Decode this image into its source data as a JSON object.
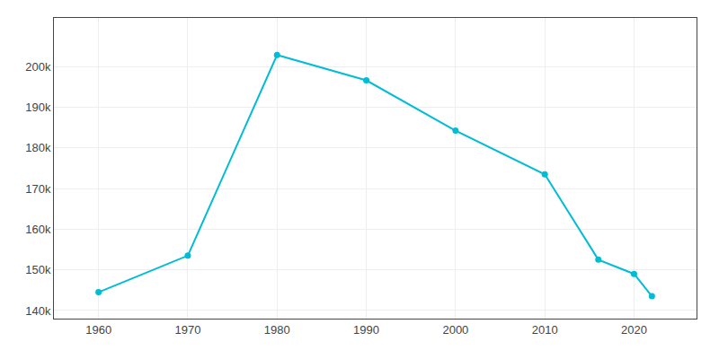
{
  "chart_data": {
    "type": "line",
    "x": [
      1960,
      1970,
      1980,
      1990,
      2000,
      2010,
      2016,
      2020,
      2022
    ],
    "values": [
      144500,
      153500,
      202895,
      196637,
      184256,
      173514,
      152500,
      149000,
      143500
    ],
    "color": "#00BCD4",
    "marker": "circle",
    "xlim": [
      1955,
      2027
    ],
    "ylim": [
      138000,
      212000
    ],
    "xticks": [
      1960,
      1970,
      1980,
      1990,
      2000,
      2010,
      2020
    ],
    "yticks": [
      {
        "value": 140000,
        "label": "140k"
      },
      {
        "value": 150000,
        "label": "150k"
      },
      {
        "value": 160000,
        "label": "160k"
      },
      {
        "value": 170000,
        "label": "170k"
      },
      {
        "value": 180000,
        "label": "180k"
      },
      {
        "value": 190000,
        "label": "190k"
      },
      {
        "value": 200000,
        "label": "200k"
      }
    ],
    "grid": true
  }
}
